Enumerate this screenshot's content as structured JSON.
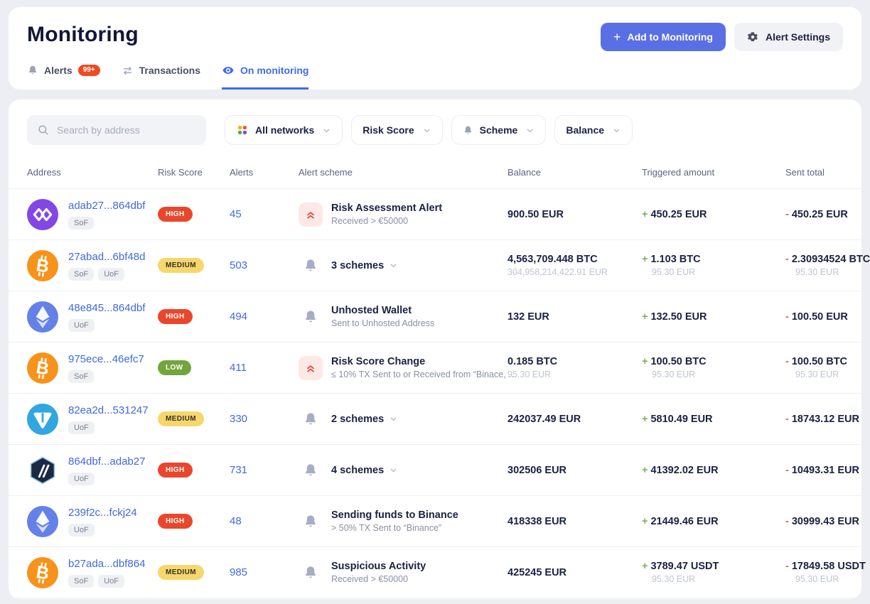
{
  "page": {
    "title": "Monitoring"
  },
  "header": {
    "add_button": "Add to Monitoring",
    "settings_button": "Alert Settings",
    "tabs": [
      {
        "label": "Alerts",
        "badge": "99+",
        "active": false
      },
      {
        "label": "Transactions",
        "active": false
      },
      {
        "label": "On monitoring",
        "active": true
      }
    ]
  },
  "filters": {
    "search_placeholder": "Search by address",
    "network": "All networks",
    "risk_score": "Risk Score",
    "scheme": "Scheme",
    "balance": "Balance"
  },
  "table": {
    "columns": [
      "Address",
      "Risk Score",
      "Alerts",
      "Alert scheme",
      "Balance",
      "Triggered amount",
      "Sent total"
    ],
    "rows": [
      {
        "network": "polygon",
        "address": "adab27...864dbf",
        "tags": [
          "SoF"
        ],
        "risk": "HIGH",
        "alerts": "45",
        "scheme": {
          "icon": "risk-change",
          "title": "Risk Assessment Alert",
          "subtitle": "Received > €50000",
          "expandable": false
        },
        "balance": {
          "main": "900.50 EUR"
        },
        "triggered": {
          "sign": "+",
          "main": "450.25 EUR"
        },
        "sent": {
          "sign": "-",
          "main": "450.25 EUR"
        }
      },
      {
        "network": "bitcoin",
        "address": "27abad...6bf48d",
        "tags": [
          "SoF",
          "UoF"
        ],
        "risk": "MEDIUM",
        "alerts": "503",
        "scheme": {
          "icon": "bell",
          "title": "3 schemes",
          "subtitle": "",
          "expandable": true
        },
        "balance": {
          "main": "4,563,709.448 BTC",
          "sub": "304,958,214,422.91 EUR"
        },
        "triggered": {
          "sign": "+",
          "main": "1.103 BTC",
          "sub": "95.30 EUR"
        },
        "sent": {
          "sign": "-",
          "main": "2.30934524 BTC",
          "sub": "95.30 EUR"
        }
      },
      {
        "network": "ethereum",
        "address": "48e845...864dbf",
        "tags": [
          "UoF"
        ],
        "risk": "HIGH",
        "alerts": "494",
        "scheme": {
          "icon": "bell",
          "title": "Unhosted Wallet",
          "subtitle": "Sent to Unhosted Address",
          "expandable": false
        },
        "balance": {
          "main": "132 EUR"
        },
        "triggered": {
          "sign": "+",
          "main": "132.50 EUR"
        },
        "sent": {
          "sign": "-",
          "main": "100.50 EUR"
        }
      },
      {
        "network": "bitcoin",
        "address": "975ece...46efc7",
        "tags": [
          "SoF"
        ],
        "risk": "LOW",
        "alerts": "411",
        "scheme": {
          "icon": "risk-change",
          "title": "Risk Score Change",
          "subtitle": "≤ 10% TX Sent to or Received from “Binace, …",
          "expandable": false
        },
        "balance": {
          "main": "0.185 BTC",
          "sub": "95.30 EUR"
        },
        "triggered": {
          "sign": "+",
          "main": "100.50 BTC",
          "sub": "95.30 EUR"
        },
        "sent": {
          "sign": "-",
          "main": "100.50 BTC",
          "sub": "95.30 EUR"
        }
      },
      {
        "network": "ton",
        "address": "82ea2d...531247",
        "tags": [
          "UoF"
        ],
        "risk": "MEDIUM",
        "alerts": "330",
        "scheme": {
          "icon": "bell",
          "title": "2 schemes",
          "subtitle": "",
          "expandable": true
        },
        "balance": {
          "main": "242037.49 EUR"
        },
        "triggered": {
          "sign": "+",
          "main": "5810.49 EUR"
        },
        "sent": {
          "sign": "-",
          "main": "18743.12 EUR"
        }
      },
      {
        "network": "arbitrum",
        "address": "864dbf...adab27",
        "tags": [
          "UoF"
        ],
        "risk": "HIGH",
        "alerts": "731",
        "scheme": {
          "icon": "bell",
          "title": "4 schemes",
          "subtitle": "",
          "expandable": true
        },
        "balance": {
          "main": "302506 EUR"
        },
        "triggered": {
          "sign": "+",
          "main": "41392.02 EUR"
        },
        "sent": {
          "sign": "-",
          "main": "10493.31 EUR"
        }
      },
      {
        "network": "ethereum",
        "address": "239f2c...fckj24",
        "tags": [
          "UoF"
        ],
        "risk": "HIGH",
        "alerts": "48",
        "scheme": {
          "icon": "bell",
          "title": "Sending funds to Binance",
          "subtitle": "> 50% TX Sent to “Binance”",
          "expandable": false
        },
        "balance": {
          "main": "418338 EUR"
        },
        "triggered": {
          "sign": "+",
          "main": "21449.46 EUR"
        },
        "sent": {
          "sign": "-",
          "main": "30999.43 EUR"
        }
      },
      {
        "network": "bitcoin",
        "address": "b27ada...dbf864",
        "tags": [
          "SoF",
          "UoF"
        ],
        "risk": "MEDIUM",
        "alerts": "985",
        "scheme": {
          "icon": "bell",
          "title": "Suspicious Activity",
          "subtitle": "Received > €50000",
          "expandable": false
        },
        "balance": {
          "main": "425245 EUR"
        },
        "triggered": {
          "sign": "+",
          "main": "3789.47 USDT",
          "sub": "95.30 EUR"
        },
        "sent": {
          "sign": "-",
          "main": "17849.58 USDT",
          "sub": "95.30 EUR"
        }
      }
    ]
  },
  "colors": {
    "accent_blue": "#3F6BF0",
    "link_blue": "#3E6AE1",
    "primary_button": "#5A6FE3",
    "alerts_count_badge": "#F04A23",
    "risk_high": "#E9472B",
    "risk_medium": "#F7D76B",
    "risk_low": "#74A43C",
    "plus_green": "#7CB35C",
    "minus_red": "#F2604A"
  },
  "networks": {
    "polygon": "#8247E5",
    "bitcoin": "#F7931A",
    "ethereum": "#6481E7",
    "ton": "#31A6DF",
    "arbitrum": "transparent"
  }
}
